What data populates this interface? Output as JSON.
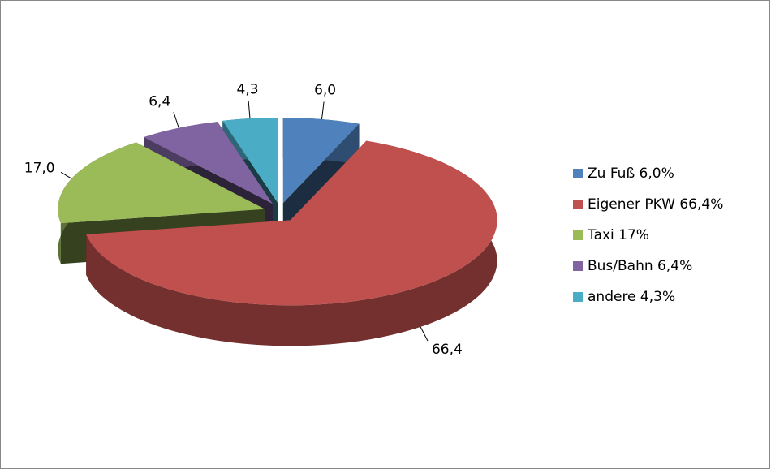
{
  "chart_data": {
    "type": "pie",
    "categories": [
      "Zu Fuß 6,0%",
      "Eigener PKW 66,4%",
      "Taxi 17%",
      "Bus/Bahn 6,4%",
      "andere 4,3%"
    ],
    "values": [
      6.0,
      66.4,
      17.0,
      6.4,
      4.3
    ],
    "value_labels": [
      "6,0",
      "66,4",
      "17,0",
      "6,4",
      "4,3"
    ],
    "colors": [
      "#4f81bd",
      "#c0504d",
      "#9bbb59",
      "#8064a2",
      "#4bacc6"
    ],
    "legend": "right"
  }
}
